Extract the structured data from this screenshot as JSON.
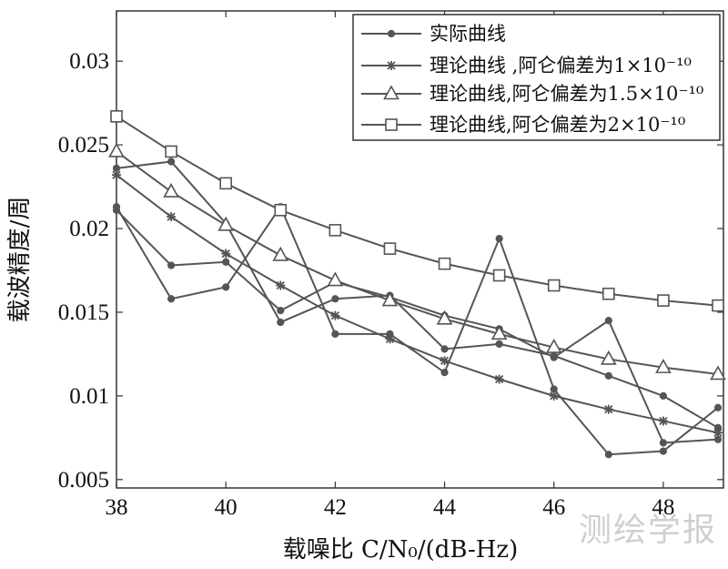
{
  "chart_data": {
    "type": "line",
    "xlabel": "载噪比 C/N₀/(dB-Hz)",
    "ylabel": "载波精度/周",
    "xlim": [
      38,
      49.1
    ],
    "ylim": [
      0.0045,
      0.033
    ],
    "xticks": [
      "38",
      "40",
      "42",
      "44",
      "46",
      "48"
    ],
    "yticks": [
      "0.005",
      "0.01",
      "0.015",
      "0.02",
      "0.025",
      "0.03"
    ],
    "grid": false,
    "legend_position": "top-right",
    "x": [
      38,
      39,
      40,
      41,
      42,
      43,
      44,
      45,
      46,
      47,
      48,
      49
    ],
    "series": [
      {
        "name": "实际曲线",
        "marker": "dot",
        "values": [
          0.0213,
          0.0158,
          0.0165,
          0.0213,
          0.0137,
          0.0137,
          0.0114,
          0.0194,
          0.0104,
          0.0065,
          0.0067,
          0.0093
        ]
      },
      {
        "name": "实际曲线",
        "marker": "dot",
        "values": [
          0.0236,
          0.024,
          0.0203,
          0.0144,
          0.0158,
          0.016,
          0.0128,
          0.0131,
          0.0124,
          0.0112,
          0.01,
          0.0081
        ]
      },
      {
        "name": "实际曲线",
        "marker": "dot",
        "values": [
          0.0211,
          0.0178,
          0.018,
          0.0151,
          0.0168,
          0.0159,
          0.0148,
          0.014,
          0.0123,
          0.0145,
          0.0072,
          0.0074
        ]
      },
      {
        "name": "理论曲线 ,阿仑偏差为1×10⁻¹⁰",
        "marker": "star",
        "values": [
          0.0232,
          0.0207,
          0.0185,
          0.0166,
          0.0148,
          0.0134,
          0.0121,
          0.011,
          0.01,
          0.0092,
          0.0085,
          0.0078
        ]
      },
      {
        "name": "理论曲线,阿仑偏差为1.5×10⁻¹⁰",
        "marker": "triangle",
        "values": [
          0.0246,
          0.0222,
          0.0202,
          0.0184,
          0.0169,
          0.0157,
          0.0146,
          0.0137,
          0.0129,
          0.0122,
          0.0117,
          0.0113
        ]
      },
      {
        "name": "理论曲线,阿仑偏差为2×10⁻¹⁰",
        "marker": "square",
        "values": [
          0.0267,
          0.0246,
          0.0227,
          0.0211,
          0.0199,
          0.0188,
          0.0179,
          0.0172,
          0.0166,
          0.0161,
          0.0157,
          0.0154
        ]
      }
    ],
    "legend": [
      {
        "label": "实际曲线",
        "marker": "dot"
      },
      {
        "label": "理论曲线 ,阿仑偏差为1×10⁻¹⁰",
        "marker": "star"
      },
      {
        "label": "理论曲线,阿仑偏差为1.5×10⁻¹⁰",
        "marker": "triangle"
      },
      {
        "label": "理论曲线,阿仑偏差为2×10⁻¹⁰",
        "marker": "square"
      }
    ],
    "line_color": "#555555"
  },
  "watermark": "测绘学报"
}
